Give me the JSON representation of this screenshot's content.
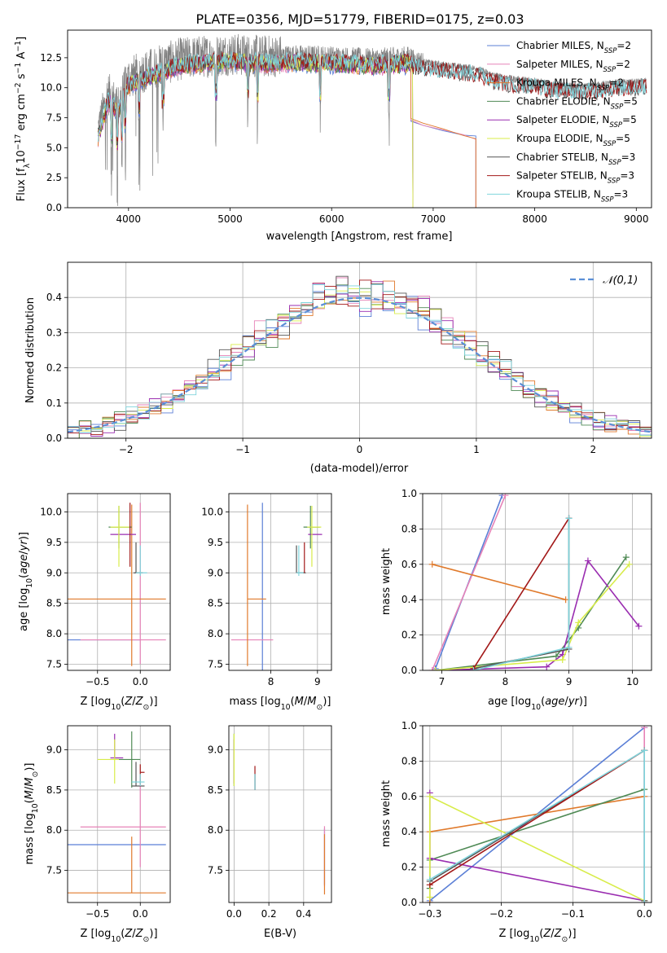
{
  "figure": {
    "title": "PLATE=0356, MJD=51779, FIBERID=0175, z=0.03"
  },
  "series_styles": [
    {
      "name": "Chabrier MILES, N_SSP=2",
      "color": "#5b7fd6"
    },
    {
      "name": "Salpeter MILES, N_SSP=2",
      "color": "#e683b8"
    },
    {
      "name": "Kroupa MILES, N_SSP=2",
      "color": "#e07a2c"
    },
    {
      "name": "Chabrier ELODIE, N_SSP=5",
      "color": "#4f8a55"
    },
    {
      "name": "Salpeter ELODIE, N_SSP=5",
      "color": "#9a2db0"
    },
    {
      "name": "Kroupa ELODIE, N_SSP=5",
      "color": "#d8ec4a"
    },
    {
      "name": "Chabrier STELIB, N_SSP=3",
      "color": "#555555"
    },
    {
      "name": "Salpeter STELIB, N_SSP=3",
      "color": "#a21818"
    },
    {
      "name": "Kroupa STELIB, N_SSP=3",
      "color": "#7fd4dc"
    }
  ],
  "chart_data": [
    {
      "id": "spectrum",
      "type": "line",
      "title": "PLATE=0356, MJD=51779, FIBERID=0175, z=0.03",
      "xlabel": "wavelength [Angstrom, rest frame]",
      "ylabel": "Flux [f_λ 10^-17 erg cm^-2 s^-1 A^-1]",
      "xlim": [
        3400,
        9150
      ],
      "ylim": [
        0,
        14.8
      ],
      "xticks": [
        4000,
        5000,
        6000,
        7000,
        8000,
        9000
      ],
      "yticks": [
        0.0,
        2.5,
        5.0,
        7.5,
        10.0,
        12.5
      ],
      "legend": "top-right",
      "data_x": [
        3700,
        3800,
        3900,
        4000,
        4100,
        4300,
        4500,
        4700,
        5000,
        5300,
        5600,
        6000,
        6400,
        6600,
        6780,
        6800,
        7000,
        7200,
        7420,
        7600,
        7800,
        8000,
        8200,
        8500,
        8800,
        9100
      ],
      "data_y": [
        6.5,
        9.5,
        8.5,
        10.8,
        11.2,
        11.8,
        12.4,
        12.6,
        12.8,
        12.6,
        12.7,
        12.6,
        12.4,
        12.5,
        12.6,
        12.3,
        12.0,
        11.8,
        11.6,
        11.0,
        10.7,
        10.6,
        10.2,
        10.1,
        10.4,
        10.5
      ],
      "model_truncations": [
        {
          "series": "MILES",
          "end_x": 6780,
          "tail_y": [
            7.4,
            6.9,
            6.5,
            6.1,
            5.8
          ],
          "tail_x": [
            6780,
            6900,
            7100,
            7300,
            7420
          ]
        }
      ],
      "series": [
        {
          "name": "Chabrier MILES, N_SSP=2"
        },
        {
          "name": "Salpeter MILES, N_SSP=2"
        },
        {
          "name": "Kroupa MILES, N_SSP=2"
        },
        {
          "name": "Chabrier ELODIE, N_SSP=5"
        },
        {
          "name": "Salpeter ELODIE, N_SSP=5"
        },
        {
          "name": "Kroupa ELODIE, N_SSP=5"
        },
        {
          "name": "Chabrier STELIB, N_SSP=3"
        },
        {
          "name": "Salpeter STELIB, N_SSP=3"
        },
        {
          "name": "Kroupa STELIB, N_SSP=3"
        }
      ]
    },
    {
      "id": "residuals",
      "type": "line",
      "xlabel": "(data-model)/error",
      "ylabel": "Normed distribution",
      "xlim": [
        -2.5,
        2.5
      ],
      "ylim": [
        0,
        0.5
      ],
      "xticks": [
        -2,
        -1,
        0,
        1,
        2
      ],
      "yticks": [
        0.0,
        0.1,
        0.2,
        0.3,
        0.4
      ],
      "grid": true,
      "legend": "top-right",
      "reference": {
        "name": "𝒩(0,1)",
        "color": "#5b8fd6"
      },
      "bin_width": 0.1
    },
    {
      "id": "age_vs_Z",
      "type": "scatter",
      "xlabel": "Z [log10(Z/Z⊙)]",
      "ylabel": "age  [log10(age/yr)]",
      "xlim": [
        -0.85,
        0.35
      ],
      "ylim": [
        7.4,
        10.3
      ],
      "xticks": [
        -0.5,
        0.0
      ],
      "yticks": [
        7.5,
        8.0,
        8.5,
        9.0,
        9.5,
        10.0
      ],
      "points": [
        {
          "s": 0,
          "x": -0.3,
          "y": 7.9,
          "xerr": [
            0.55,
            0.3
          ],
          "yerr": [
            0,
            0
          ]
        },
        {
          "s": 1,
          "x": 0.0,
          "y": 7.9,
          "xerr": [
            0.7,
            0.3
          ],
          "yerr": [
            0.4,
            2.25
          ]
        },
        {
          "s": 2,
          "x": -0.1,
          "y": 8.57,
          "xerr": [
            0.75,
            0.4
          ],
          "yerr": [
            1.1,
            1.55
          ]
        },
        {
          "s": 3,
          "x": -0.25,
          "y": 9.75,
          "xerr": [
            0.12,
            0.15
          ],
          "yerr": [
            0.35,
            0.35
          ]
        },
        {
          "s": 4,
          "x": -0.2,
          "y": 9.63,
          "xerr": [
            0.15,
            0.15
          ],
          "yerr": [
            0,
            0
          ]
        },
        {
          "s": 5,
          "x": -0.25,
          "y": 9.75,
          "xerr": [
            0.1,
            0.12
          ],
          "yerr": [
            0.65,
            0.35
          ]
        },
        {
          "s": 6,
          "x": -0.05,
          "y": 9.0,
          "xerr": [
            0.03,
            0.08
          ],
          "yerr": [
            0,
            0.5
          ]
        },
        {
          "s": 7,
          "x": -0.12,
          "y": 9.6,
          "xerr": [
            0,
            0
          ],
          "yerr": [
            0.5,
            0.55
          ]
        },
        {
          "s": 8,
          "x": 0.0,
          "y": 9.0,
          "xerr": [
            0.05,
            0.08
          ],
          "yerr": [
            0.05,
            0.45
          ]
        }
      ]
    },
    {
      "id": "age_vs_mass",
      "type": "scatter",
      "xlabel": "mass [log10(M/M⊙)]",
      "xlim": [
        7.1,
        9.3
      ],
      "ylim": [
        7.4,
        10.3
      ],
      "xticks": [
        8,
        9
      ],
      "yticks": [
        7.5,
        8.0,
        8.5,
        9.0,
        9.5,
        10.0
      ],
      "points": [
        {
          "s": 0,
          "x": 7.82,
          "y": 7.9,
          "xerr": [
            0,
            0
          ],
          "yerr": [
            0.5,
            2.25
          ]
        },
        {
          "s": 1,
          "x": 7.55,
          "y": 7.9,
          "xerr": [
            0.4,
            0.5
          ],
          "yerr": [
            0,
            0
          ]
        },
        {
          "s": 2,
          "x": 7.5,
          "y": 8.57,
          "xerr": [
            0,
            0.4
          ],
          "yerr": [
            1.1,
            1.55
          ]
        },
        {
          "s": 3,
          "x": 8.85,
          "y": 9.75,
          "xerr": [
            0.15,
            0.2
          ],
          "yerr": [
            0.35,
            0.35
          ]
        },
        {
          "s": 4,
          "x": 8.9,
          "y": 9.63,
          "xerr": [
            0.1,
            0.2
          ],
          "yerr": [
            0,
            0
          ]
        },
        {
          "s": 5,
          "x": 8.88,
          "y": 9.75,
          "xerr": [
            0.1,
            0.2
          ],
          "yerr": [
            0.65,
            0.35
          ]
        },
        {
          "s": 6,
          "x": 8.55,
          "y": 9.0,
          "xerr": [
            0,
            0.2
          ],
          "yerr": [
            0,
            0.45
          ]
        },
        {
          "s": 7,
          "x": 8.72,
          "y": 9.0,
          "xerr": [
            0,
            0
          ],
          "yerr": [
            0,
            0.5
          ]
        },
        {
          "s": 8,
          "x": 8.6,
          "y": 9.0,
          "xerr": [
            0.05,
            0.1
          ],
          "yerr": [
            0.05,
            0.45
          ]
        }
      ]
    },
    {
      "id": "weight_vs_age",
      "type": "line",
      "xlabel": "age  [log10(age/yr)]",
      "ylabel": "mass weight",
      "xlim": [
        6.7,
        10.3
      ],
      "ylim": [
        0,
        1.0
      ],
      "xticks": [
        7,
        8,
        9,
        10
      ],
      "yticks": [
        0.0,
        0.2,
        0.4,
        0.6,
        0.8,
        1.0
      ],
      "grid": true,
      "series": [
        {
          "s": 0,
          "x": [
            6.9,
            7.95
          ],
          "y": [
            0.01,
            0.99
          ]
        },
        {
          "s": 1,
          "x": [
            6.85,
            8.0
          ],
          "y": [
            0.0,
            0.99
          ]
        },
        {
          "s": 2,
          "x": [
            6.85,
            8.95
          ],
          "y": [
            0.6,
            0.4
          ]
        },
        {
          "s": 3,
          "x": [
            6.9,
            8.8,
            9.15,
            9.9
          ],
          "y": [
            0.0,
            0.08,
            0.24,
            0.64
          ]
        },
        {
          "s": 4,
          "x": [
            6.9,
            8.65,
            8.9,
            9.3,
            10.1
          ],
          "y": [
            0.0,
            0.02,
            0.09,
            0.62,
            0.25
          ]
        },
        {
          "s": 5,
          "x": [
            6.9,
            8.9,
            9.15,
            9.95
          ],
          "y": [
            0.0,
            0.06,
            0.27,
            0.6
          ]
        },
        {
          "s": 6,
          "x": [
            7.5,
            9.0,
            9.0
          ],
          "y": [
            0.01,
            0.12,
            0.86
          ]
        },
        {
          "s": 7,
          "x": [
            7.5,
            9.0
          ],
          "y": [
            0.01,
            0.86
          ]
        },
        {
          "s": 8,
          "x": [
            7.5,
            9.0,
            9.0
          ],
          "y": [
            0.0,
            0.13,
            0.86
          ]
        }
      ]
    },
    {
      "id": "mass_vs_Z",
      "type": "scatter",
      "xlabel": "Z [log10(Z/Z⊙)]",
      "ylabel": "mass [log10(M/M⊙)]",
      "xlim": [
        -0.85,
        0.35
      ],
      "ylim": [
        7.1,
        9.3
      ],
      "xticks": [
        -0.5,
        0.0
      ],
      "yticks": [
        7.5,
        8.0,
        8.5,
        9.0
      ],
      "points": [
        {
          "s": 0,
          "x": -0.3,
          "y": 7.82,
          "xerr": [
            0.55,
            0.6
          ],
          "yerr": [
            0,
            0
          ]
        },
        {
          "s": 1,
          "x": 0.0,
          "y": 8.04,
          "xerr": [
            0.7,
            0.3
          ],
          "yerr": [
            0.5,
            0.6
          ]
        },
        {
          "s": 2,
          "x": -0.1,
          "y": 7.22,
          "xerr": [
            0.75,
            0.4
          ],
          "yerr": [
            0,
            0.7
          ]
        },
        {
          "s": 3,
          "x": -0.1,
          "y": 8.88,
          "xerr": [
            0.2,
            0.1
          ],
          "yerr": [
            0.35,
            0.35
          ]
        },
        {
          "s": 4,
          "x": -0.3,
          "y": 8.9,
          "xerr": [
            0.05,
            0.1
          ],
          "yerr": [
            0,
            0.3
          ]
        },
        {
          "s": 5,
          "x": -0.3,
          "y": 8.88,
          "xerr": [
            0.2,
            0.05
          ],
          "yerr": [
            0.3,
            0.25
          ]
        },
        {
          "s": 6,
          "x": -0.05,
          "y": 8.55,
          "xerr": [
            0.05,
            0.1
          ],
          "yerr": [
            0,
            0.3
          ]
        },
        {
          "s": 7,
          "x": 0.0,
          "y": 8.72,
          "xerr": [
            0.0,
            0.05
          ],
          "yerr": [
            0.15,
            0.1
          ]
        },
        {
          "s": 8,
          "x": 0.0,
          "y": 8.6,
          "xerr": [
            0.1,
            0.05
          ],
          "yerr": [
            0.05,
            0.1
          ]
        }
      ]
    },
    {
      "id": "mass_vs_ebv",
      "type": "scatter",
      "xlabel": "E(B-V)",
      "xlim": [
        -0.03,
        0.56
      ],
      "ylim": [
        7.1,
        9.3
      ],
      "xticks": [
        0.0,
        0.2,
        0.4
      ],
      "yticks": [
        7.5,
        8.0,
        8.5,
        9.0
      ],
      "points": [
        {
          "s": 0,
          "x": 0.52,
          "y": 7.82,
          "yerr": [
            0.5,
            0.2
          ]
        },
        {
          "s": 1,
          "x": 0.52,
          "y": 7.85,
          "yerr": [
            0.55,
            0.2
          ]
        },
        {
          "s": 2,
          "x": 0.52,
          "y": 7.6,
          "yerr": [
            0.4,
            0.35
          ]
        },
        {
          "s": 3,
          "x": 0.0,
          "y": 8.85,
          "yerr": [
            0.3,
            0.35
          ]
        },
        {
          "s": 4,
          "x": 0.0,
          "y": 8.88,
          "yerr": [
            0.3,
            0.25
          ]
        },
        {
          "s": 5,
          "x": 0.0,
          "y": 8.9,
          "yerr": [
            0.35,
            0.3
          ]
        },
        {
          "s": 6,
          "x": 0.12,
          "y": 8.6,
          "yerr": [
            0.1,
            0.1
          ]
        },
        {
          "s": 7,
          "x": 0.12,
          "y": 8.65,
          "yerr": [
            0.15,
            0.15
          ]
        },
        {
          "s": 8,
          "x": 0.12,
          "y": 8.6,
          "yerr": [
            0.1,
            0.1
          ]
        }
      ]
    },
    {
      "id": "weight_vs_Z",
      "type": "line",
      "xlabel": "Z [log10(Z/Z⊙)]",
      "ylabel": "mass weight",
      "xlim": [
        -0.31,
        0.01
      ],
      "ylim": [
        0,
        1.0
      ],
      "xticks": [
        -0.3,
        -0.2,
        -0.1,
        0.0
      ],
      "yticks": [
        0.0,
        0.2,
        0.4,
        0.6,
        0.8,
        1.0
      ],
      "grid": true,
      "series": [
        {
          "s": 0,
          "x": [
            -0.3,
            0.0
          ],
          "y": [
            0.01,
            0.99
          ]
        },
        {
          "s": 1,
          "x": [
            0.0,
            0.0
          ],
          "y": [
            0.0,
            0.99
          ]
        },
        {
          "s": 2,
          "x": [
            -0.3,
            -0.3,
            0.0
          ],
          "y": [
            0.0,
            0.4,
            0.6
          ]
        },
        {
          "s": 3,
          "x": [
            -0.3,
            -0.3,
            0.0
          ],
          "y": [
            0.08,
            0.24,
            0.64
          ]
        },
        {
          "s": 4,
          "x": [
            -0.3,
            -0.3,
            0.0
          ],
          "y": [
            0.62,
            0.25,
            0.01
          ]
        },
        {
          "s": 5,
          "x": [
            -0.3,
            -0.3,
            0.0
          ],
          "y": [
            0.03,
            0.6,
            0.01
          ]
        },
        {
          "s": 6,
          "x": [
            -0.3,
            0.0,
            0.0
          ],
          "y": [
            0.12,
            0.86,
            0.01
          ]
        },
        {
          "s": 7,
          "x": [
            -0.3,
            0.0
          ],
          "y": [
            0.1,
            0.86
          ]
        },
        {
          "s": 8,
          "x": [
            -0.3,
            0.0,
            0.0
          ],
          "y": [
            0.13,
            0.86,
            0.0
          ]
        }
      ]
    }
  ]
}
